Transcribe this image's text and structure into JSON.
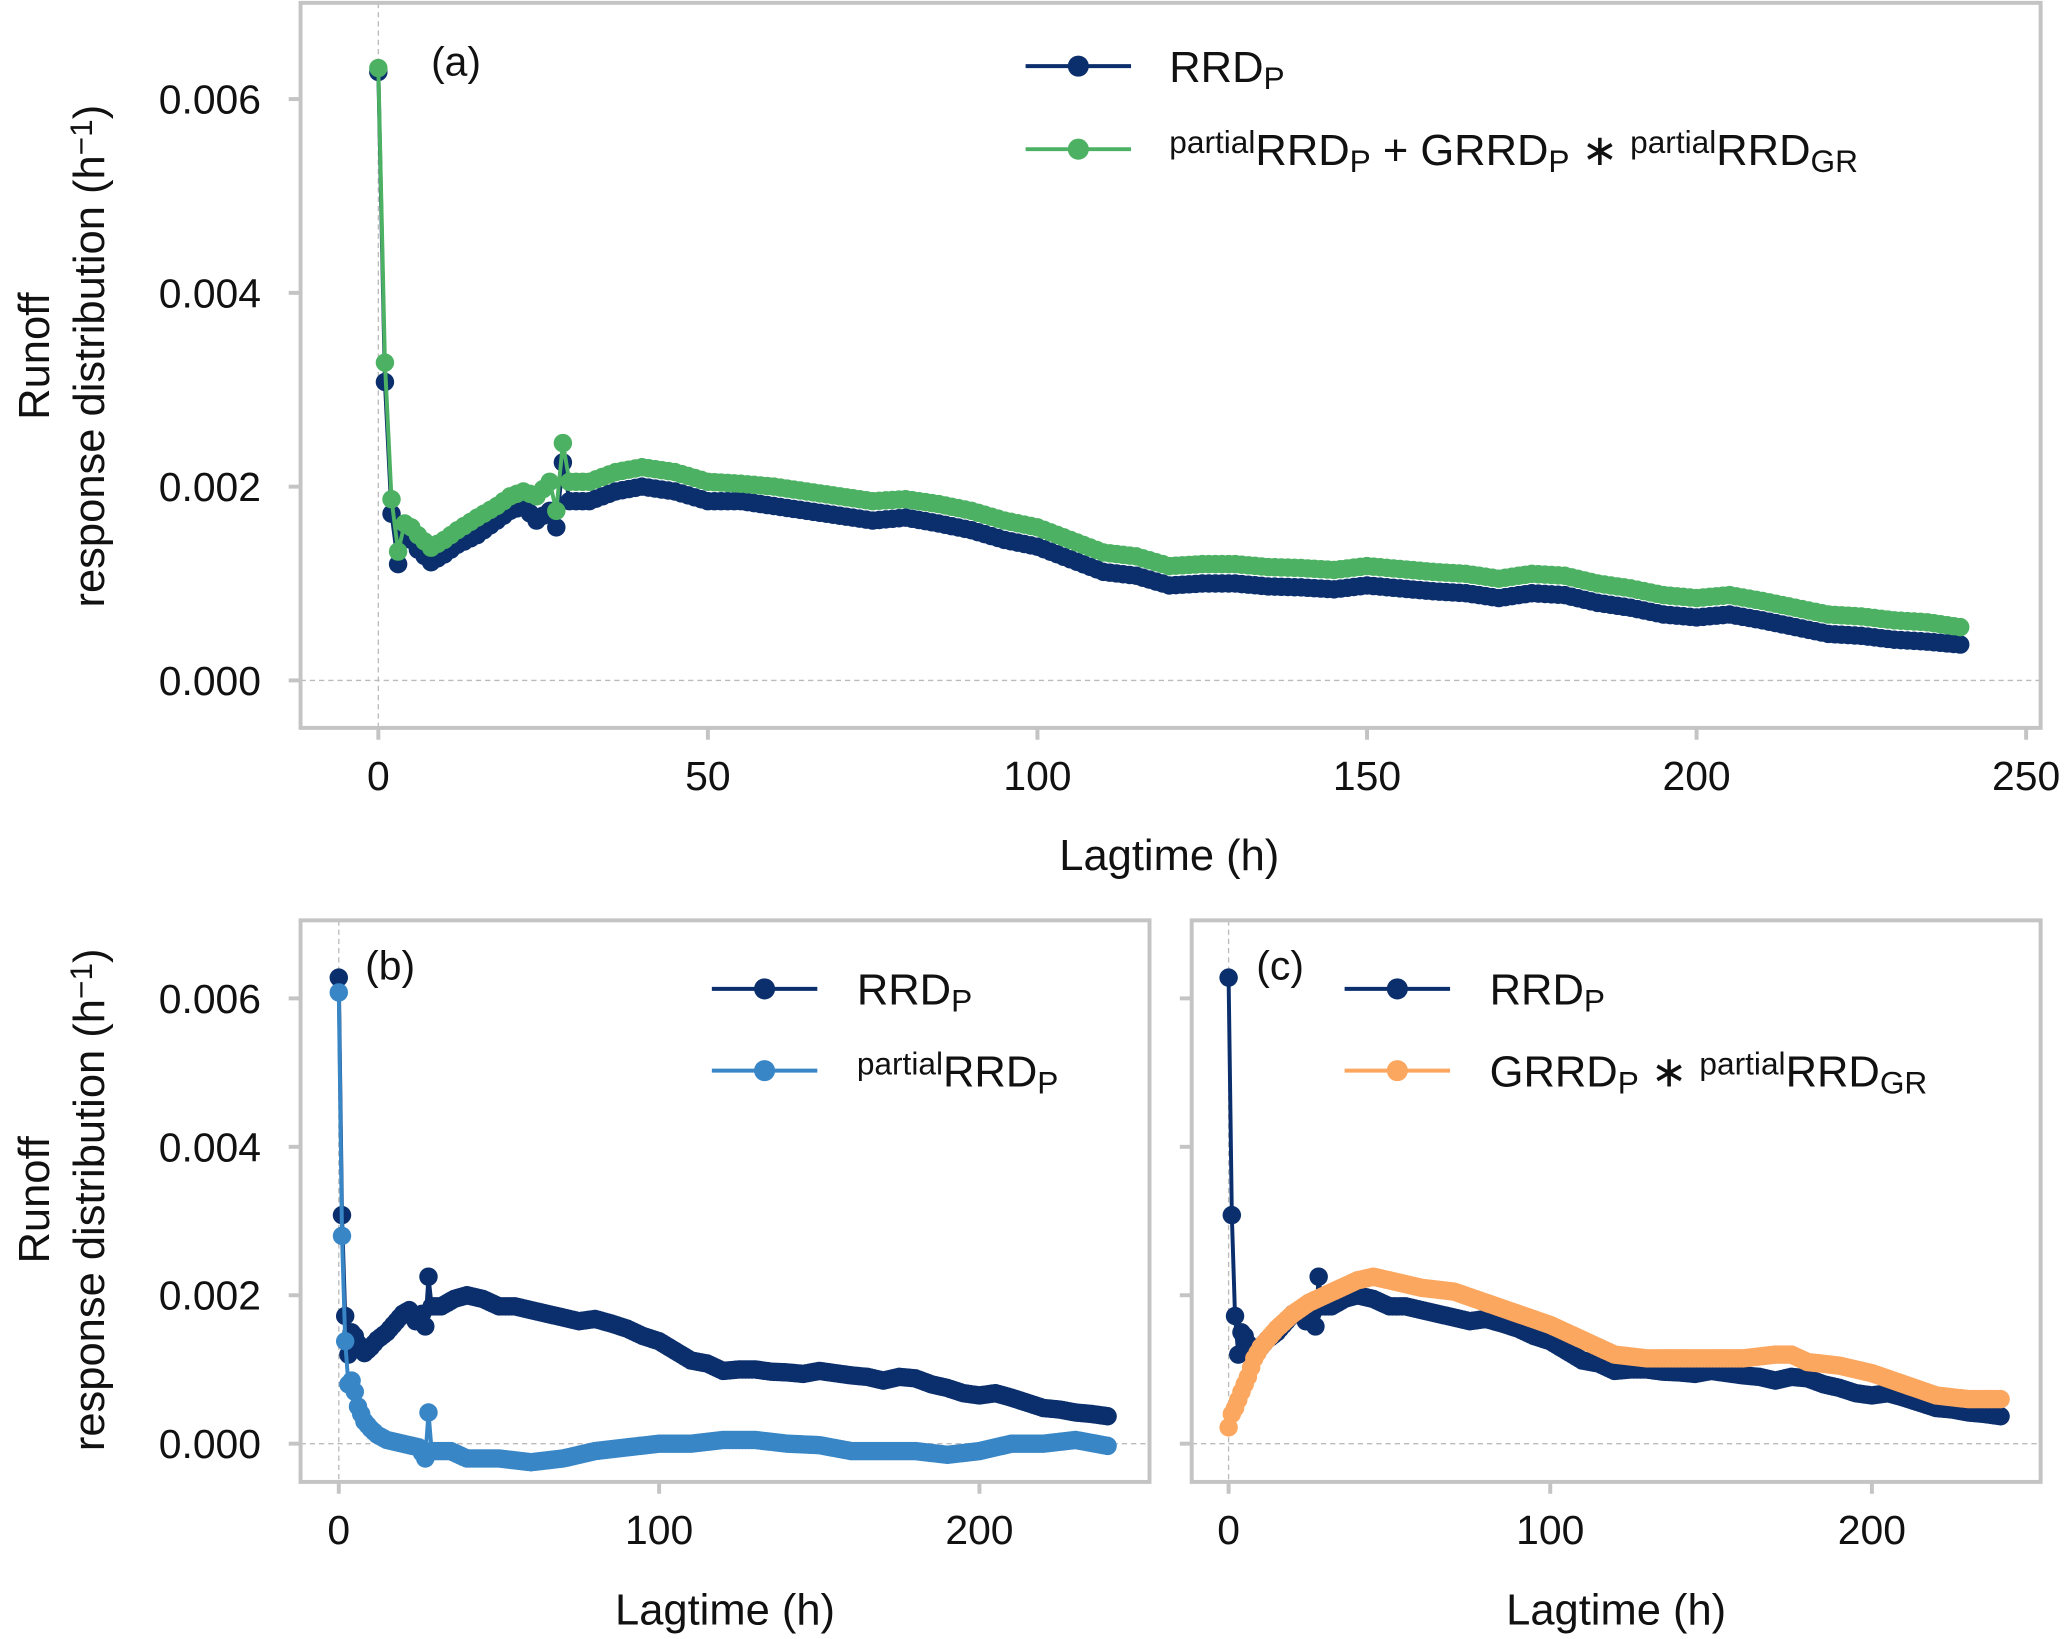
{
  "chart_data": {
    "type": "line",
    "colors": {
      "RRD_P": "#0b2f6c",
      "sum": "#4cb163",
      "partial_RRD_P": "#3886c6",
      "GRRD_partial": "#fca75f",
      "frame": "#c4c4c4"
    },
    "series": {
      "RRD_P": [
        [
          0,
          0.00628
        ],
        [
          1,
          0.00308
        ],
        [
          2,
          0.00172
        ],
        [
          3,
          0.0012
        ],
        [
          4,
          0.0015
        ],
        [
          5,
          0.00145
        ],
        [
          6,
          0.00135
        ],
        [
          8,
          0.00122
        ],
        [
          10,
          0.0013
        ],
        [
          12,
          0.0014
        ],
        [
          15,
          0.0015
        ],
        [
          18,
          0.00165
        ],
        [
          20,
          0.00175
        ],
        [
          22,
          0.0018
        ],
        [
          24,
          0.00165
        ],
        [
          26,
          0.00175
        ],
        [
          27,
          0.00158
        ],
        [
          28,
          0.00225
        ],
        [
          29,
          0.00185
        ],
        [
          32,
          0.00185
        ],
        [
          36,
          0.00195
        ],
        [
          40,
          0.002
        ],
        [
          45,
          0.00195
        ],
        [
          50,
          0.00185
        ],
        [
          55,
          0.00185
        ],
        [
          60,
          0.0018
        ],
        [
          65,
          0.00175
        ],
        [
          70,
          0.0017
        ],
        [
          75,
          0.00165
        ],
        [
          80,
          0.00168
        ],
        [
          85,
          0.00162
        ],
        [
          90,
          0.00155
        ],
        [
          95,
          0.00145
        ],
        [
          100,
          0.00138
        ],
        [
          105,
          0.00125
        ],
        [
          110,
          0.00112
        ],
        [
          115,
          0.00108
        ],
        [
          120,
          0.00098
        ],
        [
          125,
          0.001
        ],
        [
          130,
          0.001
        ],
        [
          135,
          0.00097
        ],
        [
          140,
          0.00096
        ],
        [
          145,
          0.00094
        ],
        [
          150,
          0.00098
        ],
        [
          155,
          0.00095
        ],
        [
          160,
          0.00092
        ],
        [
          165,
          0.0009
        ],
        [
          170,
          0.00085
        ],
        [
          175,
          0.0009
        ],
        [
          180,
          0.00088
        ],
        [
          185,
          0.0008
        ],
        [
          190,
          0.00075
        ],
        [
          195,
          0.00068
        ],
        [
          200,
          0.00065
        ],
        [
          205,
          0.00068
        ],
        [
          210,
          0.00062
        ],
        [
          215,
          0.00055
        ],
        [
          220,
          0.00048
        ],
        [
          225,
          0.00046
        ],
        [
          230,
          0.00042
        ],
        [
          235,
          0.0004
        ],
        [
          240,
          0.00037
        ]
      ],
      "sum": [
        [
          0,
          0.00632
        ],
        [
          1,
          0.00328
        ],
        [
          2,
          0.00187
        ],
        [
          3,
          0.00133
        ],
        [
          4,
          0.00162
        ],
        [
          5,
          0.00158
        ],
        [
          6,
          0.0015
        ],
        [
          8,
          0.00137
        ],
        [
          10,
          0.00145
        ],
        [
          12,
          0.00155
        ],
        [
          15,
          0.00168
        ],
        [
          18,
          0.0018
        ],
        [
          20,
          0.0019
        ],
        [
          22,
          0.00195
        ],
        [
          24,
          0.0019
        ],
        [
          26,
          0.00205
        ],
        [
          27,
          0.00175
        ],
        [
          28,
          0.00245
        ],
        [
          29,
          0.00205
        ],
        [
          32,
          0.00205
        ],
        [
          36,
          0.00215
        ],
        [
          40,
          0.0022
        ],
        [
          45,
          0.00215
        ],
        [
          50,
          0.00205
        ],
        [
          55,
          0.00203
        ],
        [
          60,
          0.002
        ],
        [
          65,
          0.00195
        ],
        [
          70,
          0.0019
        ],
        [
          75,
          0.00185
        ],
        [
          80,
          0.00187
        ],
        [
          85,
          0.00182
        ],
        [
          90,
          0.00175
        ],
        [
          95,
          0.00165
        ],
        [
          100,
          0.00158
        ],
        [
          105,
          0.00145
        ],
        [
          110,
          0.00132
        ],
        [
          115,
          0.00128
        ],
        [
          120,
          0.00118
        ],
        [
          125,
          0.0012
        ],
        [
          130,
          0.0012
        ],
        [
          135,
          0.00117
        ],
        [
          140,
          0.00116
        ],
        [
          145,
          0.00114
        ],
        [
          150,
          0.00118
        ],
        [
          155,
          0.00115
        ],
        [
          160,
          0.00112
        ],
        [
          165,
          0.0011
        ],
        [
          170,
          0.00105
        ],
        [
          175,
          0.0011
        ],
        [
          180,
          0.00108
        ],
        [
          185,
          0.001
        ],
        [
          190,
          0.00095
        ],
        [
          195,
          0.00088
        ],
        [
          200,
          0.00085
        ],
        [
          205,
          0.00088
        ],
        [
          210,
          0.00082
        ],
        [
          215,
          0.00075
        ],
        [
          220,
          0.00068
        ],
        [
          225,
          0.00066
        ],
        [
          230,
          0.00062
        ],
        [
          235,
          0.0006
        ],
        [
          240,
          0.00055
        ]
      ],
      "partial_RRD_P": [
        [
          0,
          0.00608
        ],
        [
          1,
          0.0028
        ],
        [
          2,
          0.00138
        ],
        [
          3,
          0.0008
        ],
        [
          4,
          0.00085
        ],
        [
          5,
          0.0007
        ],
        [
          6,
          0.0005
        ],
        [
          8,
          0.0003
        ],
        [
          10,
          0.0002
        ],
        [
          12,
          0.00012
        ],
        [
          15,
          5e-05
        ],
        [
          20,
          0
        ],
        [
          25,
          -5e-05
        ],
        [
          27,
          -0.0002
        ],
        [
          28,
          0.00042
        ],
        [
          29,
          -0.0001
        ],
        [
          35,
          -0.0001
        ],
        [
          40,
          -0.0002
        ],
        [
          50,
          -0.0002
        ],
        [
          60,
          -0.00025
        ],
        [
          70,
          -0.0002
        ],
        [
          80,
          -0.0001
        ],
        [
          90,
          -5e-05
        ],
        [
          100,
          0
        ],
        [
          110,
          0
        ],
        [
          120,
          5e-05
        ],
        [
          130,
          5e-05
        ],
        [
          140,
          0
        ],
        [
          150,
          -2e-05
        ],
        [
          160,
          -0.0001
        ],
        [
          170,
          -0.0001
        ],
        [
          180,
          -0.0001
        ],
        [
          190,
          -0.00015
        ],
        [
          200,
          -0.0001
        ],
        [
          210,
          0
        ],
        [
          220,
          0
        ],
        [
          230,
          5e-05
        ],
        [
          240,
          -3e-05
        ]
      ],
      "GRRD_partial": [
        [
          0,
          0.00022
        ],
        [
          1,
          0.0004
        ],
        [
          2,
          0.00048
        ],
        [
          4,
          0.0007
        ],
        [
          6,
          0.0009
        ],
        [
          8,
          0.00115
        ],
        [
          10,
          0.0013
        ],
        [
          15,
          0.00155
        ],
        [
          20,
          0.00175
        ],
        [
          25,
          0.0019
        ],
        [
          30,
          0.002
        ],
        [
          35,
          0.0021
        ],
        [
          40,
          0.0022
        ],
        [
          45,
          0.00225
        ],
        [
          50,
          0.0022
        ],
        [
          60,
          0.0021
        ],
        [
          70,
          0.00205
        ],
        [
          80,
          0.0019
        ],
        [
          90,
          0.00175
        ],
        [
          100,
          0.0016
        ],
        [
          110,
          0.0014
        ],
        [
          120,
          0.0012
        ],
        [
          130,
          0.00115
        ],
        [
          140,
          0.00115
        ],
        [
          150,
          0.00115
        ],
        [
          160,
          0.00115
        ],
        [
          170,
          0.0012
        ],
        [
          175,
          0.0012
        ],
        [
          180,
          0.0011
        ],
        [
          190,
          0.00105
        ],
        [
          200,
          0.00095
        ],
        [
          210,
          0.0008
        ],
        [
          220,
          0.00065
        ],
        [
          230,
          0.0006
        ],
        [
          240,
          0.0006
        ]
      ]
    },
    "panels": [
      {
        "id": "a",
        "label": "(a)",
        "xlabel": "Lagtime (h)",
        "ylabel_line1": "Runoff",
        "ylabel_line2": "response distribution (h",
        "ylabel_sup": "−1",
        "ylabel_end": ")",
        "xlim": [
          -12,
          252
        ],
        "ylim": [
          -0.0005,
          0.007
        ],
        "xticks": [
          "0",
          "50",
          "100",
          "150",
          "200",
          "250"
        ],
        "yticks": [
          "0.000",
          "0.002",
          "0.004",
          "0.006"
        ],
        "series": [
          "RRD_P",
          "sum"
        ],
        "legend_position": "top-right",
        "legend": [
          [
            {
              "t": "RRD"
            },
            {
              "t": "P",
              "s": "sub"
            }
          ],
          [
            {
              "t": "partial",
              "s": "sup"
            },
            {
              "t": "RRD"
            },
            {
              "t": "P",
              "s": "sub"
            },
            {
              "t": " + GRRD"
            },
            {
              "t": "P",
              "s": "sub"
            },
            {
              "t": " ∗ "
            },
            {
              "t": "partial",
              "s": "sup"
            },
            {
              "t": "RRD"
            },
            {
              "t": "GR",
              "s": "sub"
            }
          ]
        ]
      },
      {
        "id": "b",
        "label": "(b)",
        "xlabel": "Lagtime (h)",
        "ylabel_line1": "Runoff",
        "ylabel_line2": "response distribution (h",
        "ylabel_sup": "−1",
        "ylabel_end": ")",
        "xlim": [
          -12,
          252
        ],
        "ylim": [
          -0.0005,
          0.007
        ],
        "xticks": [
          "0",
          "100",
          "200"
        ],
        "yticks": [
          "0.000",
          "0.002",
          "0.004",
          "0.006"
        ],
        "series": [
          "RRD_P",
          "partial_RRD_P"
        ],
        "legend_position": "top-right",
        "legend": [
          [
            {
              "t": "RRD"
            },
            {
              "t": "P",
              "s": "sub"
            }
          ],
          [
            {
              "t": "partial",
              "s": "sup"
            },
            {
              "t": "RRD"
            },
            {
              "t": "P",
              "s": "sub"
            }
          ]
        ]
      },
      {
        "id": "c",
        "label": "(c)",
        "xlabel": "Lagtime (h)",
        "xlim": [
          -12,
          252
        ],
        "ylim": [
          -0.0005,
          0.007
        ],
        "xticks": [
          "0",
          "100",
          "200"
        ],
        "series": [
          "RRD_P",
          "GRRD_partial"
        ],
        "legend_position": "top-right",
        "legend": [
          [
            {
              "t": "RRD"
            },
            {
              "t": "P",
              "s": "sub"
            }
          ],
          [
            {
              "t": "GRRD"
            },
            {
              "t": "P",
              "s": "sub"
            },
            {
              "t": " ∗ "
            },
            {
              "t": "partial",
              "s": "sup"
            },
            {
              "t": "RRD"
            },
            {
              "t": "GR",
              "s": "sub"
            }
          ]
        ]
      }
    ]
  }
}
